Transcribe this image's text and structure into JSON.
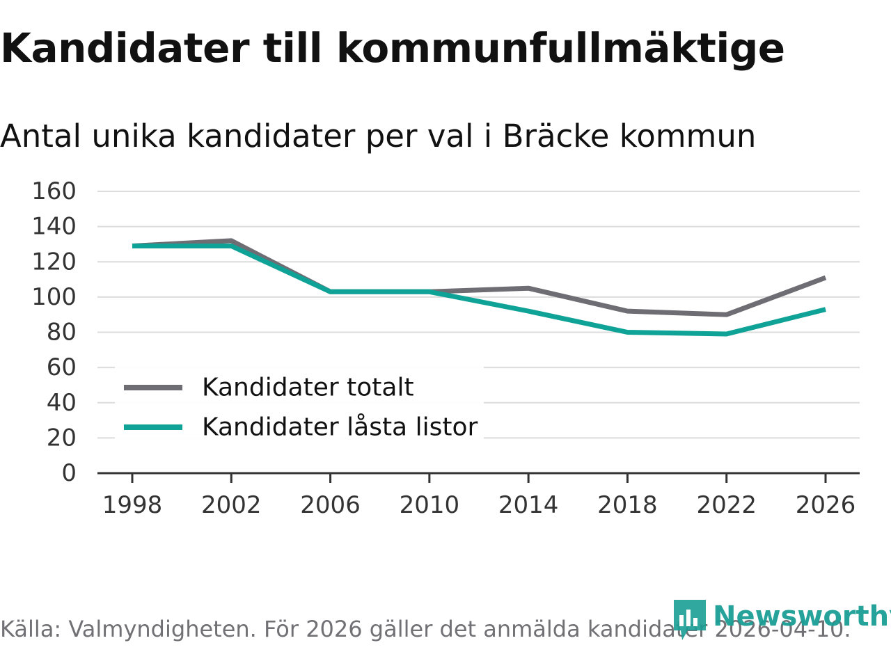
{
  "title": "Kandidater till kommunfullmäktige",
  "subtitle": "Antal unika kandidater per val i Bräcke kommun",
  "source": "Källa: Valmyndigheten. För 2026 gäller det anmälda kandidater 2026-04-10.",
  "brand": {
    "name": "Newsworthy",
    "icon": "bar-chart-icon",
    "color": "#1a9e95"
  },
  "chart_data": {
    "type": "line",
    "title": "Kandidater till kommunfullmäktige",
    "subtitle": "Antal unika kandidater per val i Bräcke kommun",
    "x": [
      1998,
      2002,
      2006,
      2010,
      2014,
      2018,
      2022,
      2026
    ],
    "xlabel": "",
    "ylabel": "",
    "ylim": [
      0,
      160
    ],
    "yticks": [
      0,
      20,
      40,
      60,
      80,
      100,
      120,
      140,
      160
    ],
    "grid": true,
    "legend_position": "bottom-left",
    "series": [
      {
        "name": "Kandidater totalt",
        "color": "#6e6d73",
        "values": [
          129,
          132,
          103,
          103,
          105,
          92,
          90,
          111
        ]
      },
      {
        "name": "Kandidater låsta listor",
        "color": "#0fa397",
        "values": [
          129,
          129,
          103,
          103,
          92,
          80,
          79,
          93
        ]
      }
    ]
  }
}
